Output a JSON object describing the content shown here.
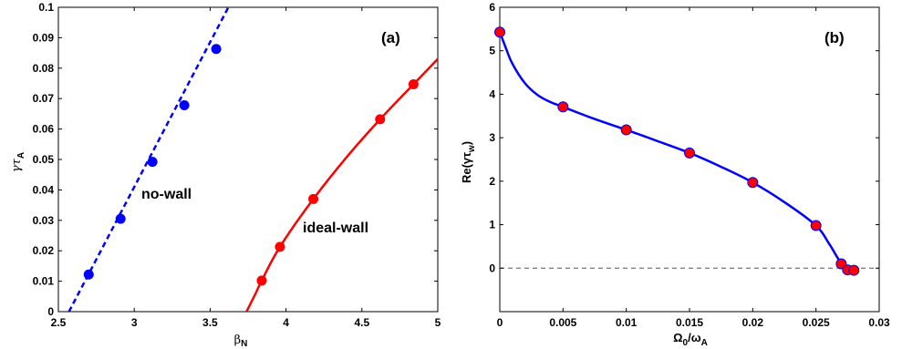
{
  "chart_data": [
    {
      "panel": "(a)",
      "type": "line",
      "xlabel": "β_N",
      "ylabel": "γτ_A",
      "xlim": [
        2.5,
        5
      ],
      "ylim": [
        0,
        0.1
      ],
      "xticks": [
        "2.5",
        "3",
        "3.5",
        "4",
        "4.5",
        "5"
      ],
      "yticks": [
        "0",
        "0.01",
        "0.02",
        "0.03",
        "0.04",
        "0.05",
        "0.06",
        "0.07",
        "0.08",
        "0.09",
        "0.1"
      ],
      "grid": false,
      "series": [
        {
          "name": "no-wall",
          "color": "#0000ff",
          "line_style": "dashed",
          "points": [
            [
              2.7,
              0.0122
            ],
            [
              2.91,
              0.0305
            ],
            [
              3.12,
              0.0492
            ],
            [
              3.33,
              0.0678
            ],
            [
              3.54,
              0.0863
            ]
          ],
          "curve": [
            [
              2.57,
              0.0
            ],
            [
              3.62,
              0.1
            ]
          ]
        },
        {
          "name": "ideal-wall",
          "color": "#ff0000",
          "line_style": "solid",
          "points": [
            [
              3.84,
              0.0102
            ],
            [
              3.96,
              0.0213
            ],
            [
              4.18,
              0.037
            ],
            [
              4.62,
              0.0632
            ],
            [
              4.84,
              0.0747
            ]
          ],
          "curve": [
            [
              3.74,
              0.0
            ],
            [
              3.8,
              0.006
            ],
            [
              3.84,
              0.0102
            ],
            [
              3.96,
              0.0213
            ],
            [
              4.18,
              0.037
            ],
            [
              4.4,
              0.0508
            ],
            [
              4.62,
              0.0632
            ],
            [
              4.84,
              0.0747
            ],
            [
              5.0,
              0.083
            ]
          ]
        }
      ]
    },
    {
      "panel": "(b)",
      "type": "line",
      "xlabel": "Ω_0/ω_A",
      "ylabel": "Re(γτ_w)",
      "xlim": [
        0,
        0.03
      ],
      "ylim": [
        -1,
        6
      ],
      "xticks": [
        "0",
        "0.005",
        "0.01",
        "0.015",
        "0.02",
        "0.025",
        "0.03"
      ],
      "yticks": [
        "0",
        "1",
        "2",
        "3",
        "4",
        "5",
        "6"
      ],
      "grid": false,
      "reference_line": {
        "y": 0,
        "style": "dashed",
        "color": "#555555"
      },
      "series": [
        {
          "color": "#0000ff",
          "line_style": "solid",
          "marker_color": "#ff0000",
          "points": [
            [
              0.0,
              5.43
            ],
            [
              0.005,
              3.71
            ],
            [
              0.01,
              3.18
            ],
            [
              0.015,
              2.65
            ],
            [
              0.02,
              1.97
            ],
            [
              0.025,
              0.98
            ],
            [
              0.027,
              0.1
            ],
            [
              0.0275,
              -0.04
            ],
            [
              0.028,
              -0.05
            ]
          ],
          "curve": [
            [
              0.0,
              5.43
            ],
            [
              0.0005,
              5.05
            ],
            [
              0.001,
              4.7
            ],
            [
              0.002,
              4.25
            ],
            [
              0.003,
              3.98
            ],
            [
              0.004,
              3.82
            ],
            [
              0.005,
              3.71
            ],
            [
              0.0075,
              3.43
            ],
            [
              0.01,
              3.18
            ],
            [
              0.0125,
              2.92
            ],
            [
              0.015,
              2.65
            ],
            [
              0.0175,
              2.33
            ],
            [
              0.02,
              1.97
            ],
            [
              0.0225,
              1.52
            ],
            [
              0.025,
              0.98
            ],
            [
              0.026,
              0.58
            ],
            [
              0.0265,
              0.34
            ],
            [
              0.027,
              0.1
            ],
            [
              0.0273,
              0.0
            ],
            [
              0.0275,
              -0.04
            ],
            [
              0.028,
              -0.05
            ]
          ]
        }
      ]
    }
  ]
}
